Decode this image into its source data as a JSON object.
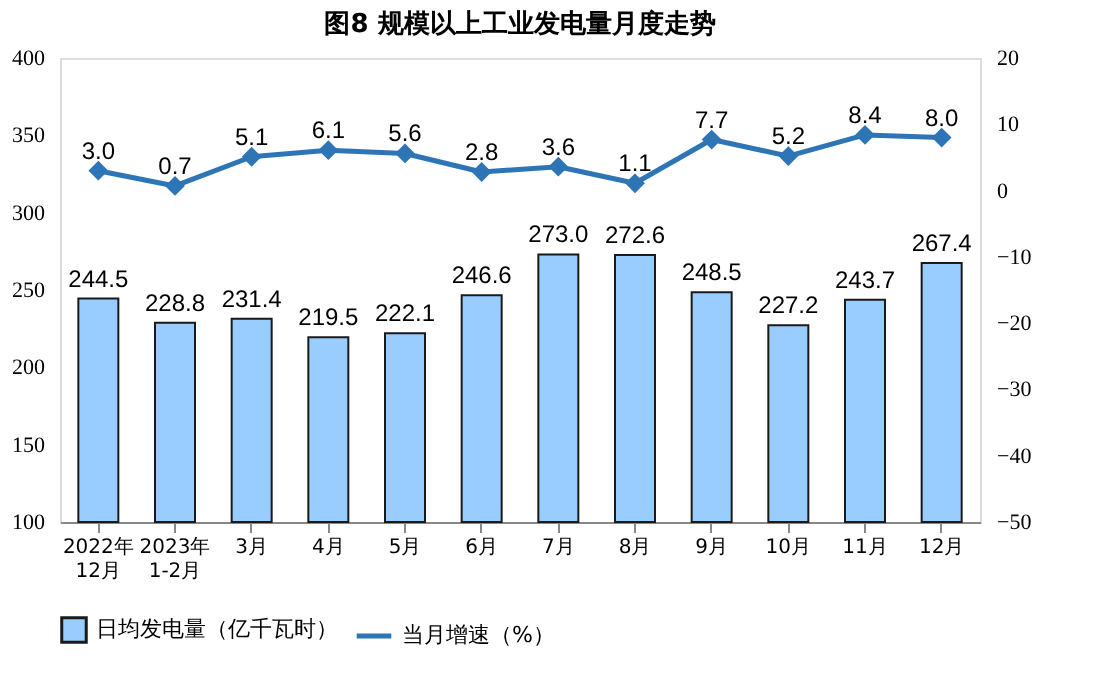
{
  "chart_data": {
    "type": "bar",
    "title": "图8  规模以上工业发电量月度走势",
    "categories": [
      "2022年\n12月",
      "2023年\n1-2月",
      "3月",
      "4月",
      "5月",
      "6月",
      "7月",
      "8月",
      "9月",
      "10月",
      "11月",
      "12月"
    ],
    "series": [
      {
        "name": "日均发电量（亿千瓦时）",
        "color": "#99ccff",
        "values": [
          244.5,
          228.8,
          231.4,
          219.5,
          222.1,
          246.6,
          273.0,
          272.6,
          248.5,
          227.2,
          243.7,
          267.4
        ],
        "value_labels": [
          "244.5",
          "228.8",
          "231.4",
          "219.5",
          "222.1",
          "246.6",
          "273.0",
          "272.6",
          "248.5",
          "227.2",
          "243.7",
          "267.4"
        ]
      },
      {
        "name": "当月增速（%）",
        "type": "line",
        "axis": "y2",
        "color": "#2e75b6",
        "values": [
          3.0,
          0.7,
          5.1,
          6.1,
          5.6,
          2.8,
          3.6,
          1.1,
          7.7,
          5.2,
          8.4,
          8.0
        ],
        "value_labels": [
          "3.0",
          "0.7",
          "5.1",
          "6.1",
          "5.6",
          "2.8",
          "3.6",
          "1.1",
          "7.7",
          "5.2",
          "8.4",
          "8.0"
        ]
      }
    ],
    "ylim": [
      100,
      400
    ],
    "yticks": [
      100,
      150,
      200,
      250,
      300,
      350,
      400
    ],
    "y2lim": [
      -50,
      20
    ],
    "y2ticks": [
      -50,
      -40,
      -30,
      -20,
      -10,
      0,
      10,
      20
    ],
    "legend": "bottom",
    "marker": "diamond",
    "grid": false
  }
}
